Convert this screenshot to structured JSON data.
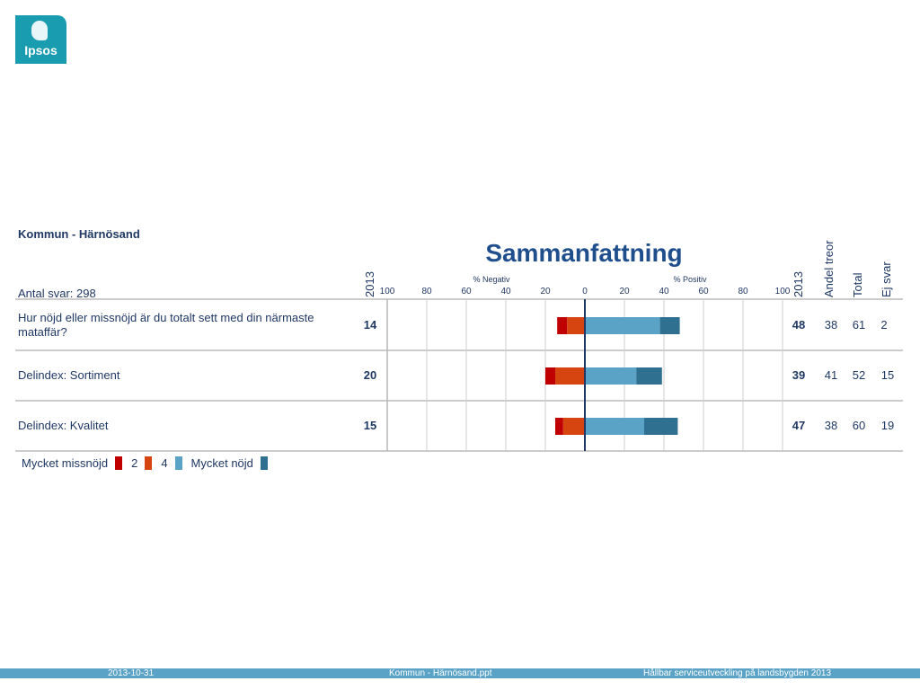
{
  "logo": {
    "text": "Ipsos"
  },
  "header": {
    "kommun": "Kommun - Härnösand",
    "title": "Sammanfattning",
    "antal": "Antal svar: 298",
    "col_neg_year": "2013",
    "col_pos_year": "2013",
    "col_andel": "Andel treor",
    "col_total": "Total",
    "col_ej": "Ej svar",
    "neg_label": "% Negativ",
    "pos_label": "% Positiv"
  },
  "rows": [
    {
      "label": "Hur nöjd eller missnöjd är du totalt sett med din närmaste mataffär?",
      "neg": "14",
      "pos": "48",
      "andel": "38",
      "total": "61",
      "ej": "2"
    },
    {
      "label": "Delindex: Sortiment",
      "neg": "20",
      "pos": "39",
      "andel": "41",
      "total": "52",
      "ej": "15"
    },
    {
      "label": "Delindex: Kvalitet",
      "neg": "15",
      "pos": "47",
      "andel": "38",
      "total": "60",
      "ej": "19"
    }
  ],
  "legend": {
    "l1": "Mycket missnöjd",
    "l2": "2",
    "l3": "4",
    "l4": "Mycket nöjd"
  },
  "footer": {
    "date": "2013-10-31",
    "file": "Kommun - Härnösand.ppt",
    "project": "Hållbar serviceutveckling på landsbygden 2013"
  },
  "colors": {
    "very_neg": "#c00000",
    "neg": "#d6450f",
    "pos": "#5ba3c6",
    "very_pos": "#2f6f8f",
    "axis": "#1f3864"
  },
  "chart_data": {
    "type": "bar",
    "title": "Sammanfattning",
    "xlabel_negative": "% Negativ",
    "xlabel_positive": "% Positiv",
    "xlim": [
      -100,
      100
    ],
    "ticks": [
      100,
      80,
      60,
      40,
      20,
      0,
      20,
      40,
      60,
      80,
      100
    ],
    "categories": [
      "Hur nöjd eller missnöjd är du totalt sett med din närmaste mataffär?",
      "Delindex: Sortiment",
      "Delindex: Kvalitet"
    ],
    "series": [
      {
        "name": "Mycket missnöjd",
        "values": [
          5,
          5,
          4
        ]
      },
      {
        "name": "2",
        "values": [
          9,
          15,
          11
        ]
      },
      {
        "name": "4",
        "values": [
          38,
          26,
          30
        ]
      },
      {
        "name": "Mycket nöjd",
        "values": [
          10,
          13,
          17
        ]
      }
    ]
  }
}
